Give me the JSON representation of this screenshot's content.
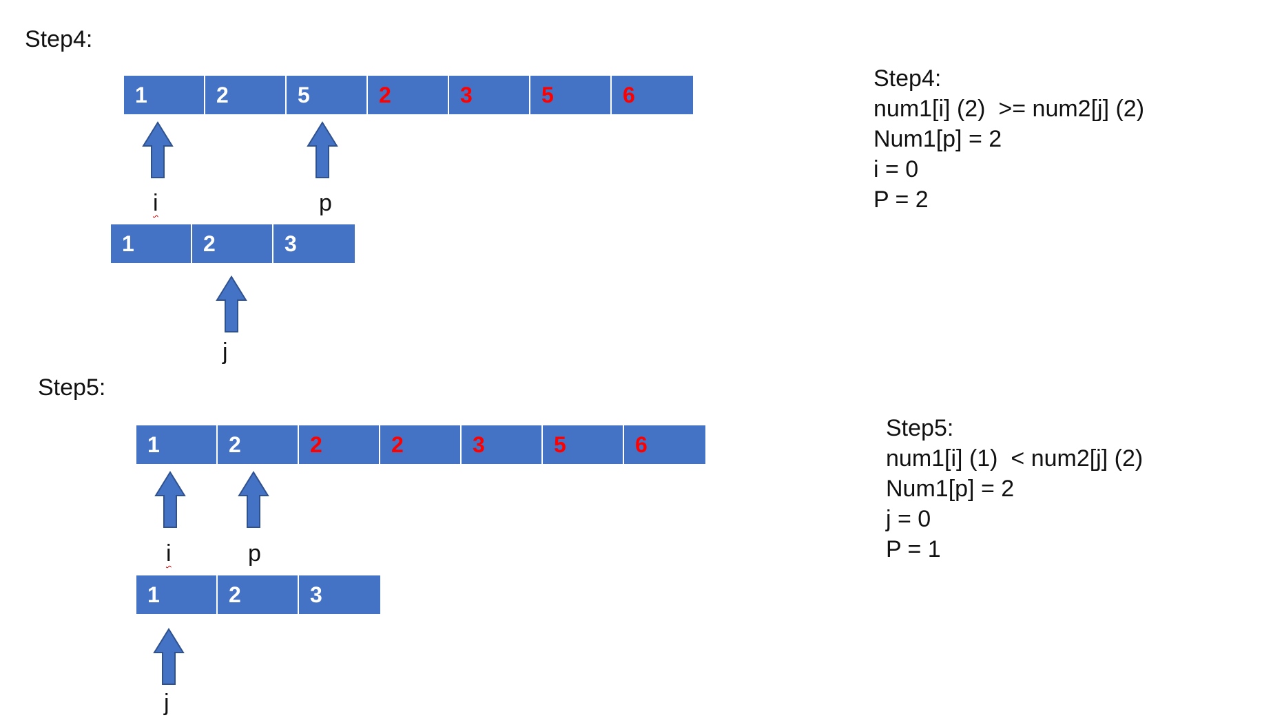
{
  "step4": {
    "heading": "Step4:",
    "num1": [
      {
        "v": "1",
        "red": false
      },
      {
        "v": "2",
        "red": false
      },
      {
        "v": "5",
        "red": false
      },
      {
        "v": "2",
        "red": true
      },
      {
        "v": "3",
        "red": true
      },
      {
        "v": "5",
        "red": true
      },
      {
        "v": "6",
        "red": true
      }
    ],
    "num2": [
      "1",
      "2",
      "3"
    ],
    "pointer_i": "i",
    "pointer_p": "p",
    "pointer_j": "j",
    "notes": [
      "Step4:",
      "num1[i] (2)  >= num2[j] (2)",
      "Num1[p] = 2",
      "i = 0",
      "P = 2"
    ]
  },
  "step5": {
    "heading": "Step5:",
    "num1": [
      {
        "v": "1",
        "red": false
      },
      {
        "v": "2",
        "red": false
      },
      {
        "v": "2",
        "red": true
      },
      {
        "v": "2",
        "red": true
      },
      {
        "v": "3",
        "red": true
      },
      {
        "v": "5",
        "red": true
      },
      {
        "v": "6",
        "red": true
      }
    ],
    "num2": [
      "1",
      "2",
      "3"
    ],
    "pointer_i": "i",
    "pointer_p": "p",
    "pointer_j": "j",
    "notes": [
      "Step5:",
      "num1[i] (1)  < num2[j] (2)",
      "Num1[p] = 2",
      "j = 0",
      "P = 1"
    ]
  },
  "colors": {
    "cell_fill": "#4472c4",
    "cell_text": "#ffffff",
    "highlight_text": "#ff0000"
  }
}
